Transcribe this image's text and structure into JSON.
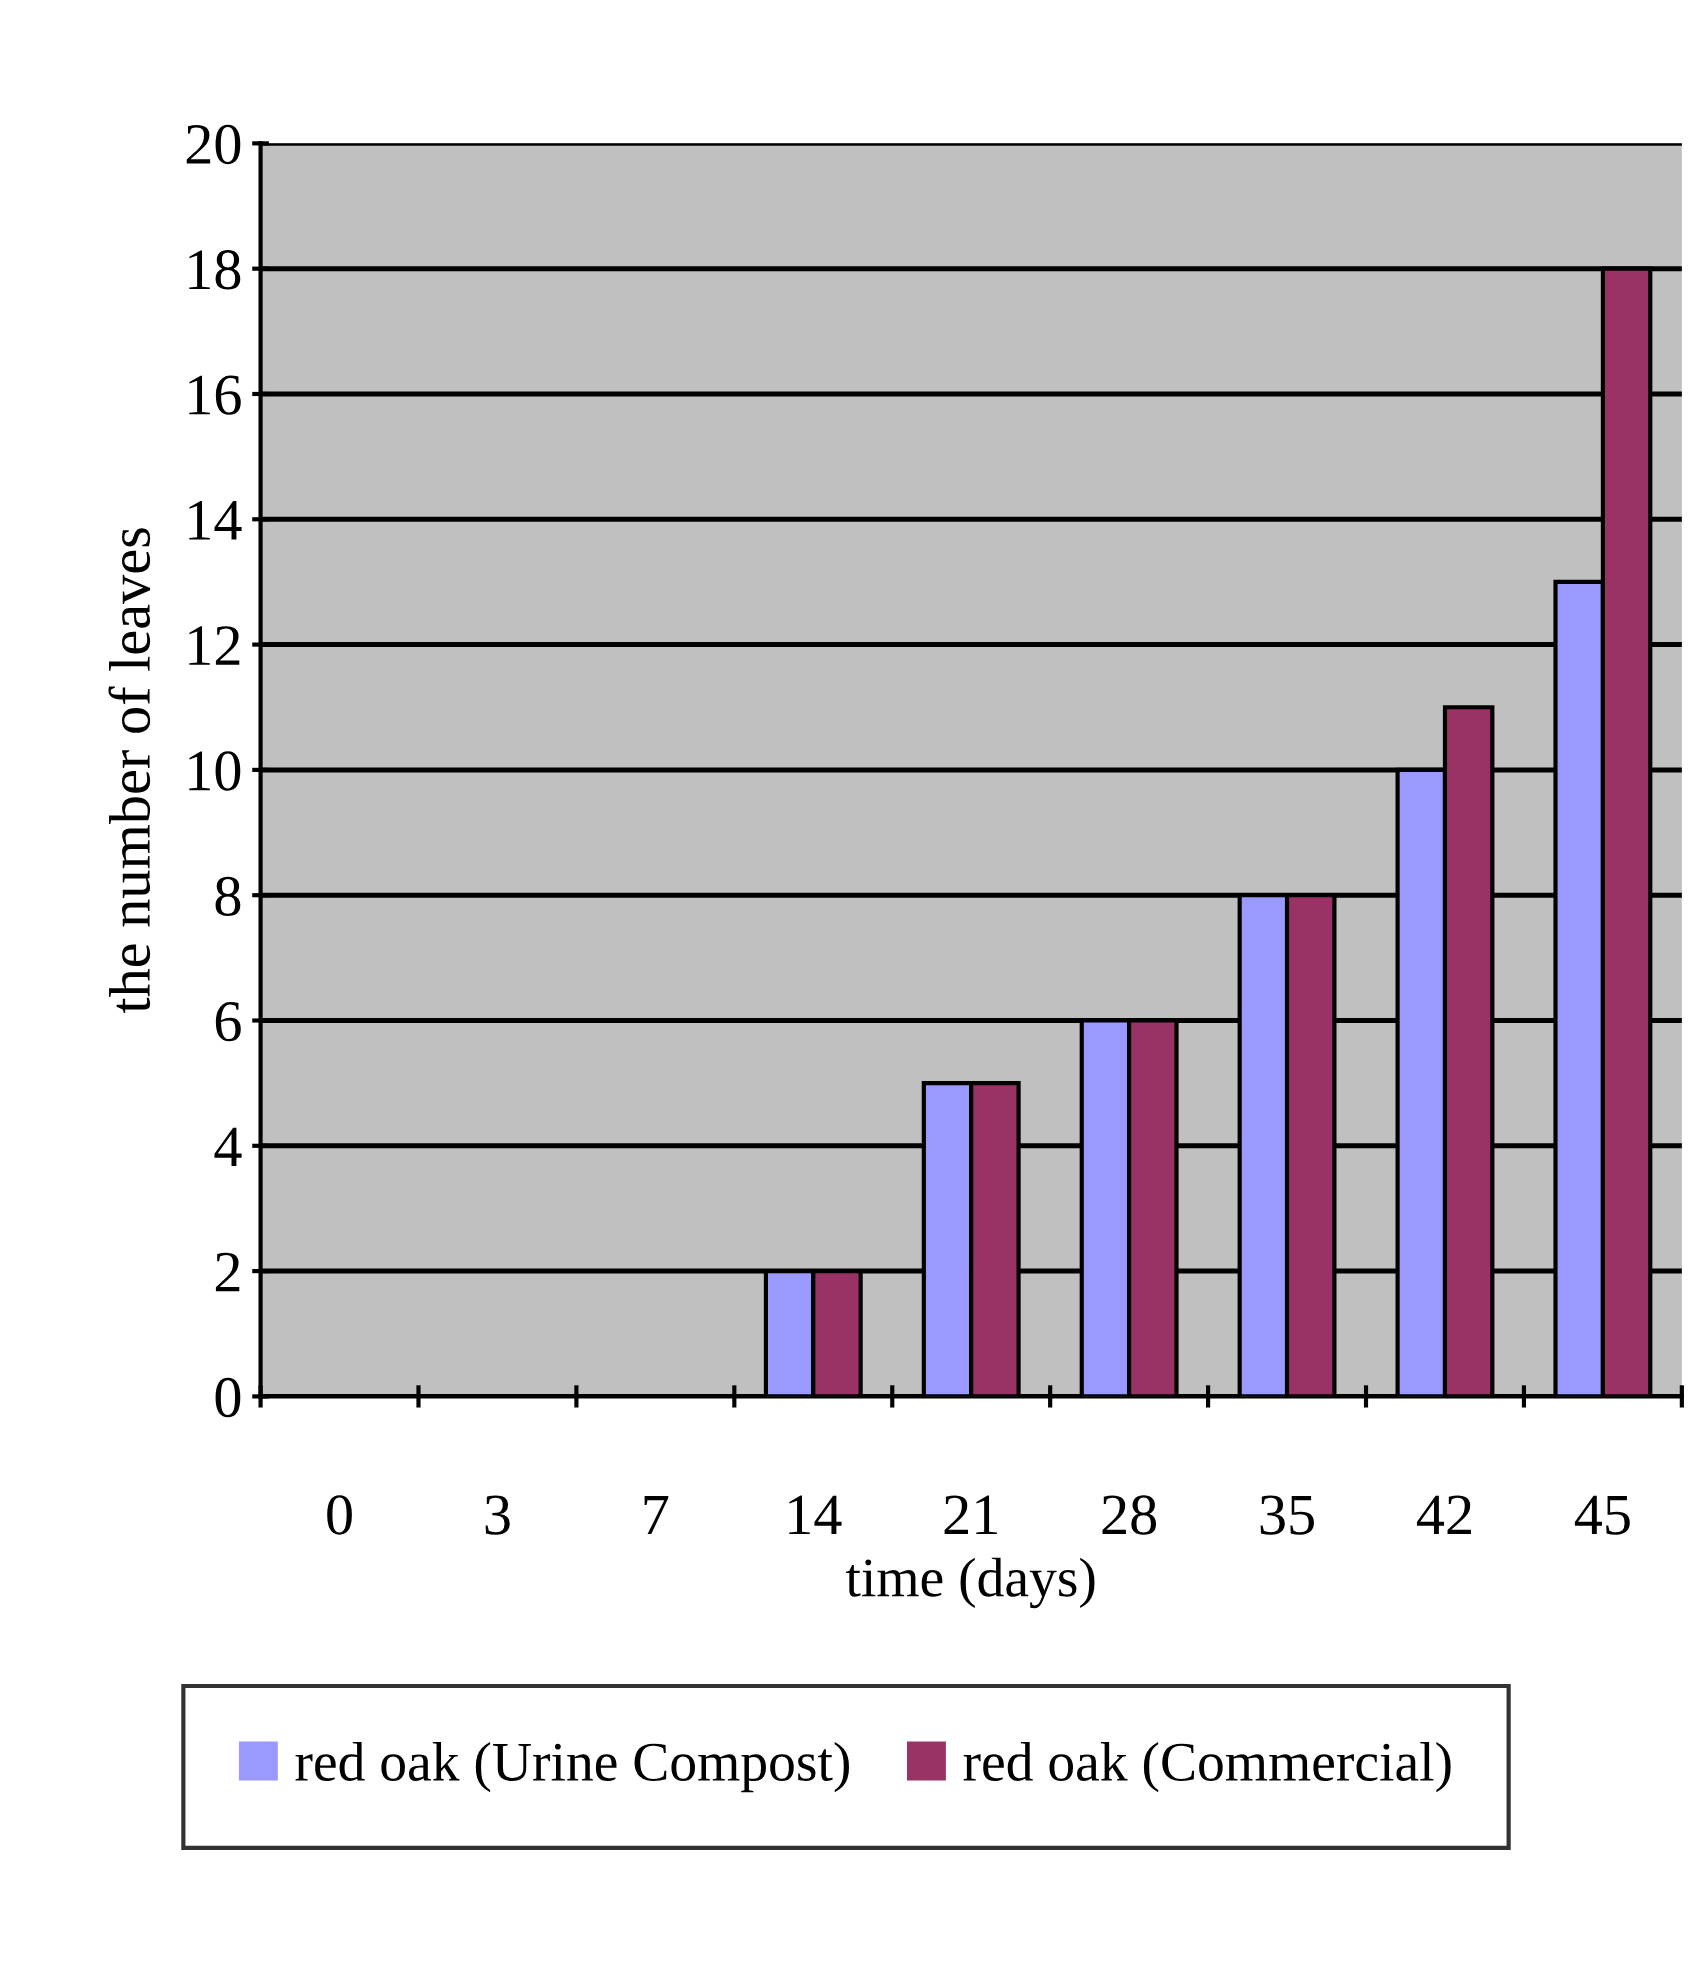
{
  "chart_data": {
    "type": "bar",
    "xlabel": "time (days)",
    "ylabel": "the number of leaves",
    "categories": [
      "0",
      "3",
      "7",
      "14",
      "21",
      "28",
      "35",
      "42",
      "45"
    ],
    "series": [
      {
        "name": "red oak (Urine Compost)",
        "color": "#9999ff",
        "values": [
          0,
          0,
          0,
          2,
          5,
          6,
          8,
          10,
          13
        ]
      },
      {
        "name": "red oak (Commercial)",
        "color": "#993366",
        "values": [
          0,
          0,
          0,
          2,
          5,
          6,
          8,
          11,
          18
        ]
      }
    ],
    "ylim": [
      0,
      20
    ],
    "yticks": [
      0,
      2,
      4,
      6,
      8,
      10,
      12,
      14,
      16,
      18,
      20
    ],
    "grid": "y",
    "legend": "bottom"
  }
}
